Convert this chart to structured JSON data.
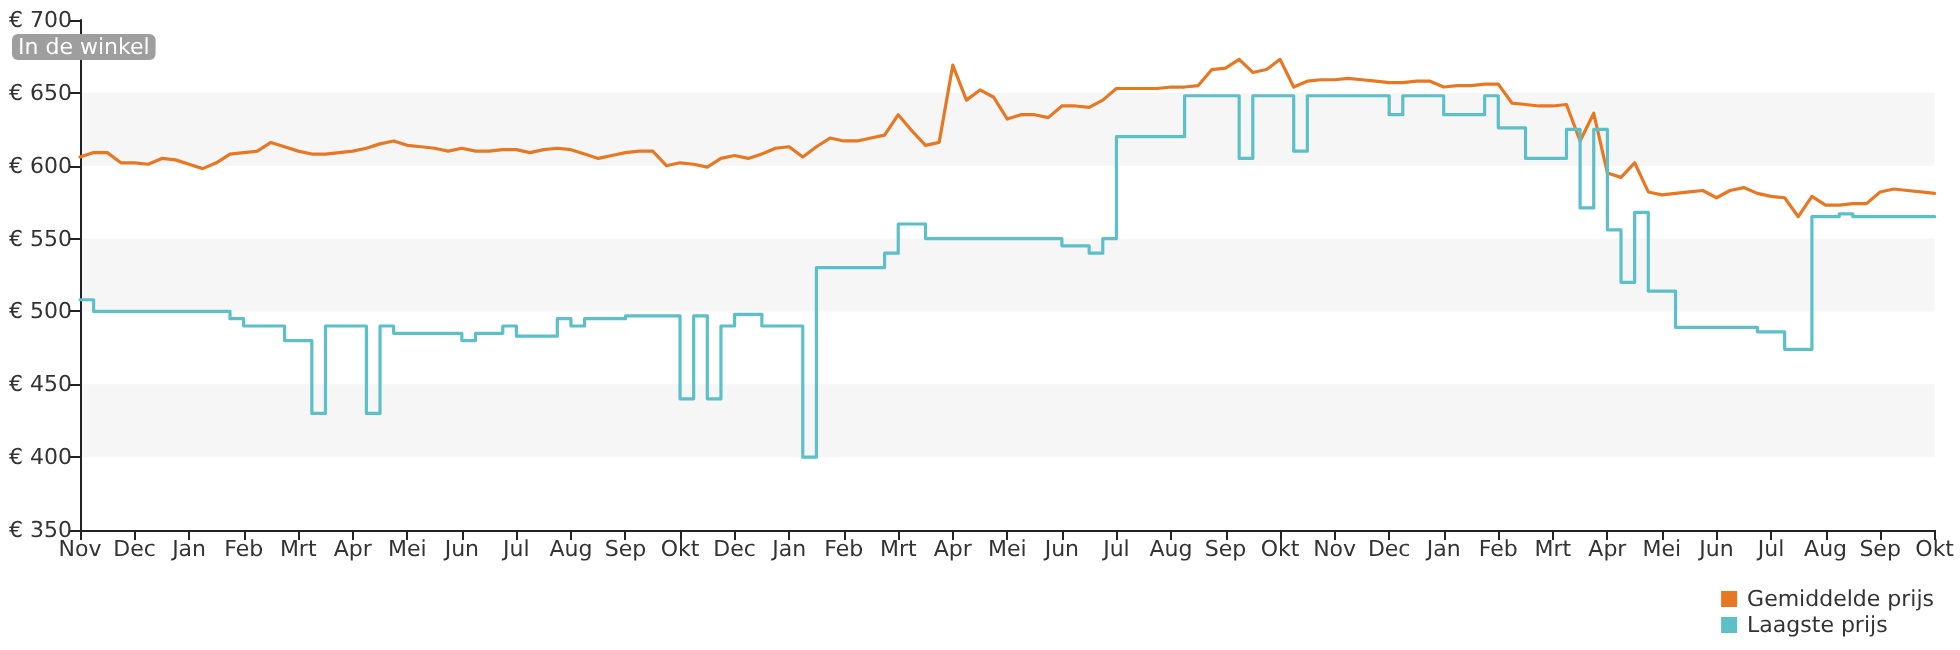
{
  "chart_data": {
    "type": "line",
    "annotations": [
      "In de winkel"
    ],
    "categories": [
      "Nov",
      null,
      null,
      null,
      "Dec",
      null,
      null,
      null,
      "Jan",
      null,
      null,
      null,
      "Feb",
      null,
      null,
      null,
      "Mrt",
      null,
      null,
      null,
      "Apr",
      null,
      null,
      null,
      "Mei",
      null,
      null,
      null,
      "Jun",
      null,
      null,
      null,
      "Jul",
      null,
      null,
      null,
      "Aug",
      null,
      null,
      null,
      "Sep",
      null,
      null,
      null,
      "Okt",
      null,
      null,
      null,
      "Dec",
      null,
      null,
      null,
      "Jan",
      null,
      null,
      null,
      "Feb",
      null,
      null,
      null,
      "Mrt",
      null,
      null,
      null,
      "Apr",
      null,
      null,
      null,
      "Mei",
      null,
      null,
      null,
      "Jun",
      null,
      null,
      null,
      "Jul",
      null,
      null,
      null,
      "Aug",
      null,
      null,
      null,
      "Sep",
      null,
      null,
      null,
      "Okt",
      null,
      null,
      null,
      "Nov",
      null,
      null,
      null,
      "Dec",
      null,
      null,
      null,
      "Jan",
      null,
      null,
      null,
      "Feb",
      null,
      null,
      null,
      "Mrt",
      null,
      null,
      null,
      "Apr",
      null,
      null,
      null,
      "Mei",
      null,
      null,
      null,
      "Jun",
      null,
      null,
      null,
      "Jul",
      null,
      null,
      null,
      "Aug",
      null,
      null,
      null,
      "Sep",
      null,
      null,
      null,
      "Okt"
    ],
    "ylim": [
      350,
      700
    ],
    "yticks": [
      {
        "value": 350,
        "label": "€ 350"
      },
      {
        "value": 400,
        "label": "€ 400"
      },
      {
        "value": 450,
        "label": "€ 450"
      },
      {
        "value": 500,
        "label": "€ 500"
      },
      {
        "value": 550,
        "label": "€ 550"
      },
      {
        "value": 600,
        "label": "€ 600"
      },
      {
        "value": 650,
        "label": "€ 650"
      },
      {
        "value": 700,
        "label": "€ 700"
      }
    ],
    "bands": [
      {
        "axis": "y",
        "from": 400,
        "to": 450,
        "color": "#f6f6f6"
      },
      {
        "axis": "y",
        "from": 500,
        "to": 550,
        "color": "#f6f6f6"
      },
      {
        "axis": "y",
        "from": 600,
        "to": 650,
        "color": "#f6f6f6"
      }
    ],
    "legend": "bottom right",
    "marker": "none",
    "line_style": "solid",
    "series": [
      {
        "name": "Gemiddelde prijs",
        "type": "line",
        "color": "#e87722",
        "values": [
          606,
          609,
          609,
          602,
          602,
          601,
          605,
          604,
          601,
          598,
          602,
          608,
          609,
          610,
          616,
          613,
          610,
          608,
          608,
          609,
          610,
          612,
          615,
          617,
          614,
          613,
          612,
          610,
          612,
          610,
          610,
          611,
          611,
          609,
          611,
          612,
          611,
          608,
          605,
          607,
          609,
          610,
          610,
          600,
          602,
          601,
          599,
          605,
          607,
          605,
          608,
          612,
          613,
          606,
          613,
          619,
          617,
          617,
          619,
          621,
          635,
          624,
          614,
          616,
          669,
          645,
          652,
          647,
          632,
          635,
          635,
          633,
          641,
          641,
          640,
          645,
          653,
          653,
          653,
          653,
          654,
          654,
          655,
          666,
          667,
          673,
          664,
          666,
          673,
          654,
          658,
          659,
          659,
          660,
          659,
          658,
          657,
          657,
          658,
          658,
          654,
          655,
          655,
          656,
          656,
          643,
          642,
          641,
          641,
          642,
          617,
          636,
          595,
          592,
          602,
          582,
          580,
          581,
          582,
          583,
          578,
          583,
          585,
          581,
          579,
          578,
          565,
          579,
          573,
          573,
          574,
          574,
          582,
          584,
          583,
          582,
          581
        ]
      },
      {
        "name": "Laagste prijs",
        "type": "step",
        "color": "#5bc0c8",
        "values": [
          508,
          500,
          500,
          500,
          500,
          500,
          500,
          500,
          500,
          500,
          500,
          495,
          490,
          490,
          490,
          480,
          480,
          430,
          490,
          490,
          490,
          430,
          490,
          485,
          485,
          485,
          485,
          485,
          480,
          485,
          485,
          490,
          483,
          483,
          483,
          495,
          490,
          495,
          495,
          495,
          497,
          497,
          497,
          497,
          440,
          497,
          440,
          490,
          498,
          498,
          490,
          490,
          490,
          400,
          530,
          530,
          530,
          530,
          530,
          540,
          560,
          560,
          550,
          550,
          550,
          550,
          550,
          550,
          550,
          550,
          550,
          550,
          545,
          545,
          540,
          550,
          620,
          620,
          620,
          620,
          620,
          648,
          648,
          648,
          648,
          605,
          648,
          648,
          648,
          610,
          648,
          648,
          648,
          648,
          648,
          648,
          635,
          648,
          648,
          648,
          635,
          635,
          635,
          648,
          626,
          626,
          605,
          605,
          605,
          625,
          571,
          625,
          556,
          520,
          568,
          514,
          514,
          489,
          489,
          489,
          489,
          489,
          489,
          486,
          486,
          474,
          474,
          565,
          565,
          567,
          565,
          565,
          565,
          565,
          565,
          565,
          565
        ]
      }
    ]
  }
}
